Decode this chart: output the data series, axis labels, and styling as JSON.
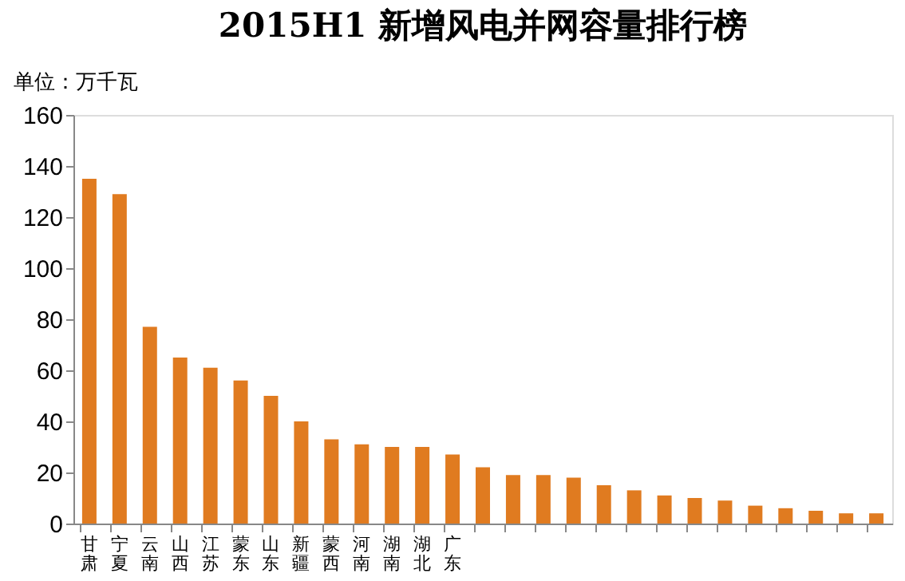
{
  "chart_data": {
    "type": "bar",
    "title": "2015H1 新增风电并网容量排行榜",
    "ylabel": "单位：万千瓦",
    "categories": [
      "甘肃",
      "宁夏",
      "云南",
      "山西",
      "江苏",
      "蒙东",
      "山东",
      "新疆",
      "蒙西",
      "河南",
      "湖南",
      "湖北",
      "广东",
      null,
      null,
      null,
      null,
      null,
      null,
      null,
      null,
      null,
      null,
      null,
      null,
      null,
      null
    ],
    "values": [
      135,
      129,
      77,
      65,
      61,
      56,
      50,
      40,
      33,
      31,
      30,
      30,
      27,
      22,
      19,
      19,
      18,
      15,
      13,
      11,
      10,
      9,
      7,
      6,
      5,
      4,
      4
    ],
    "color": "#e07b20",
    "ylim": [
      0,
      160
    ],
    "yticks": [
      0,
      20,
      40,
      60,
      80,
      100,
      120,
      140,
      160
    ],
    "grid": false
  }
}
